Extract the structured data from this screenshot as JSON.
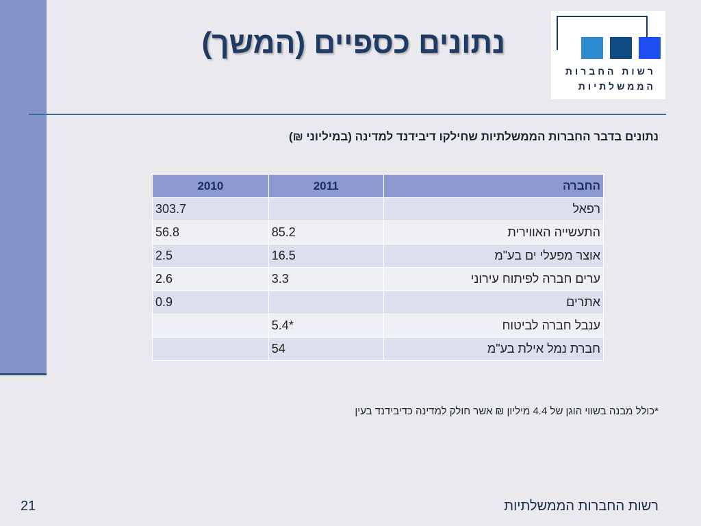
{
  "title": "נתונים כספיים (המשך)",
  "logo": {
    "line1": "רשות החברות",
    "line2": "הממשלתיות"
  },
  "subtitle": "נתונים בדבר החברות הממשלתיות שחילקו דיבידנד למדינה (במיליוני ₪)",
  "table": {
    "headers": {
      "company": "החברה",
      "y2011": "2011",
      "y2010": "2010"
    },
    "rows": [
      {
        "company": "רפאל",
        "y2011": "",
        "y2010": "303.7"
      },
      {
        "company": "התעשייה האווירית",
        "y2011": "85.2",
        "y2010": "56.8"
      },
      {
        "company": "אוצר מפעלי ים בע\"מ",
        "y2011": "16.5",
        "y2010": "2.5"
      },
      {
        "company": "ערים חברה לפיתוח עירוני",
        "y2011": "3.3",
        "y2010": "2.6"
      },
      {
        "company": "אתרים",
        "y2011": "",
        "y2010": "0.9"
      },
      {
        "company": "ענבל חברה לביטוח",
        "y2011": "*5.4",
        "y2010": ""
      },
      {
        "company": "חברת נמל אילת בע\"מ",
        "y2011": "54",
        "y2010": ""
      }
    ]
  },
  "footnote": "*כולל מבנה בשווי הוגן של 4.4 מיליון ₪ אשר חולק למדינה כדיבידנד בעין",
  "footer": {
    "org_name": "רשות החברות הממשלתיות",
    "page_number": "21"
  }
}
